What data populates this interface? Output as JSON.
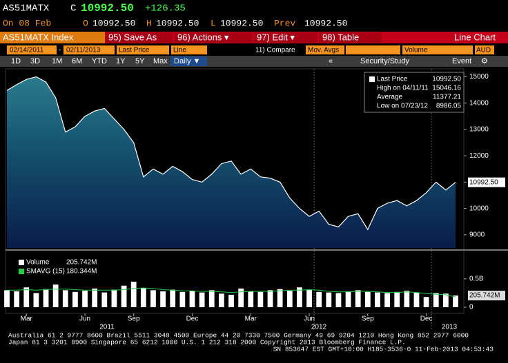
{
  "header": {
    "ticker": "AS51MATX",
    "flag": "C",
    "last": "10992.50",
    "change": "+126.35",
    "date": "On 08 Feb",
    "open_label": "O",
    "open": "10992.50",
    "high_label": "H",
    "high": "10992.50",
    "low_label": "L",
    "low": "10992.50",
    "prev_label": "Prev",
    "prev": "10992.50"
  },
  "toolbar": {
    "security": "AS51MATX Index",
    "buttons": [
      "95) Save As",
      "96) Actions ▾",
      "97) Edit ▾",
      "98) Table"
    ],
    "view": "Line Chart"
  },
  "settings": {
    "start": "02/14/2011",
    "separator": "-",
    "end": "02/11/2013",
    "field": "Last Price",
    "style": "Line",
    "compare": "11) Compare",
    "mov_avgs": "Mov. Avgs",
    "lower": "Volume",
    "currency": "AUD"
  },
  "tabs": {
    "periods": [
      "1D",
      "3D",
      "1M",
      "6M",
      "YTD",
      "1Y",
      "5Y",
      "Max"
    ],
    "frequency": "Daily ▼",
    "collapse": "«",
    "study": "Security/Study",
    "event": "Event",
    "gear": "⚙"
  },
  "price_legend": [
    {
      "label": "Last Price",
      "value": "10992.50"
    },
    {
      "label": "High on 04/11/11",
      "value": "15046.16"
    },
    {
      "label": "Average",
      "value": "11377.21"
    },
    {
      "label": "Low on 07/23/12",
      "value": "8986.05"
    }
  ],
  "chart_data": [
    {
      "type": "line",
      "ylim": [
        8500,
        15300
      ],
      "yticks": [
        9000,
        10000,
        11000,
        12000,
        13000,
        14000,
        15000
      ],
      "series": [
        {
          "name": "Last Price",
          "color": "#ffffff",
          "last_label": "10992.50",
          "values": [
            14480,
            14700,
            14900,
            15000,
            14800,
            14200,
            12900,
            13100,
            13500,
            13700,
            13800,
            13400,
            13000,
            12500,
            11200,
            11500,
            11300,
            11600,
            11400,
            11100,
            11000,
            11300,
            11700,
            11800,
            11300,
            11500,
            11200,
            11150,
            11000,
            10400,
            10000,
            9700,
            9900,
            9400,
            9300,
            9700,
            9800,
            9200,
            10000,
            10200,
            10300,
            10100,
            10300,
            10600,
            11000,
            10700,
            10992.5
          ]
        }
      ]
    },
    {
      "type": "bar",
      "ylim": [
        0,
        0.9
      ],
      "yticks": [
        0,
        {
          "value": 0.5,
          "label": "0.5B"
        }
      ],
      "categories": [
        null,
        null,
        "Mar",
        null,
        null,
        null,
        null,
        null,
        "Jun",
        null,
        null,
        null,
        null,
        "Sep",
        null,
        null,
        null,
        null,
        null,
        "Dec",
        null,
        null,
        null,
        null,
        null,
        "Mar",
        null,
        null,
        null,
        null,
        null,
        "Jun",
        null,
        null,
        null,
        null,
        null,
        "Sep",
        null,
        null,
        null,
        null,
        null,
        "Dec",
        null,
        null,
        null
      ],
      "x_group_labels": [
        "2011",
        "2012",
        "2013"
      ],
      "series": [
        {
          "name": "Volume",
          "color": "#ffffff",
          "last_label": "205.742M",
          "values": [
            0.3,
            0.28,
            0.35,
            0.25,
            0.32,
            0.4,
            0.3,
            0.27,
            0.29,
            0.33,
            0.26,
            0.31,
            0.38,
            0.45,
            0.34,
            0.3,
            0.28,
            0.31,
            0.27,
            0.29,
            0.26,
            0.3,
            0.24,
            0.22,
            0.33,
            0.28,
            0.27,
            0.3,
            0.32,
            0.29,
            0.35,
            0.31,
            0.27,
            0.26,
            0.25,
            0.28,
            0.3,
            0.27,
            0.26,
            0.25,
            0.27,
            0.29,
            0.26,
            0.18,
            0.25,
            0.24,
            0.205742
          ]
        },
        {
          "name": "SMAVG (15)",
          "color": "#22cc44",
          "last_label": "180.344M",
          "values": [
            0.3,
            0.3,
            0.31,
            0.3,
            0.31,
            0.32,
            0.32,
            0.31,
            0.3,
            0.3,
            0.3,
            0.3,
            0.31,
            0.33,
            0.34,
            0.33,
            0.31,
            0.3,
            0.29,
            0.29,
            0.28,
            0.28,
            0.27,
            0.26,
            0.27,
            0.28,
            0.28,
            0.28,
            0.29,
            0.3,
            0.3,
            0.31,
            0.3,
            0.28,
            0.27,
            0.27,
            0.28,
            0.28,
            0.27,
            0.26,
            0.26,
            0.27,
            0.26,
            0.24,
            0.23,
            0.22,
            0.180344
          ]
        }
      ]
    }
  ],
  "footer": [
    "Australia 61 2 9777 8600 Brazil 5511 3048 4500 Europe 44 20 7330 7500 Germany 49 69 9204 1210 Hong Kong 852 2977 6000",
    "Japan 81 3 3201 8900         Singapore 65 6212 1000         U.S. 1 212 318 2000         Copyright 2013 Bloomberg Finance L.P.",
    "SN 853647 EST  GMT+10:00 H185-3536-0 11-Feb-2013 04:53:43"
  ]
}
